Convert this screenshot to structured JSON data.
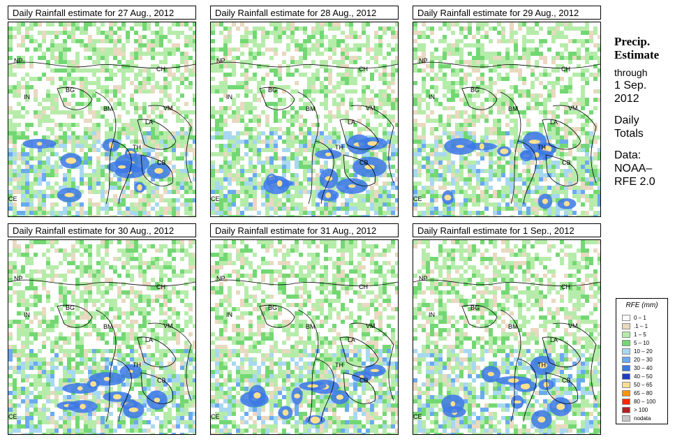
{
  "panels": [
    {
      "title": "Daily Rainfall estimate for  27 Aug., 2012",
      "day": 0
    },
    {
      "title": "Daily Rainfall estimate for  28 Aug., 2012",
      "day": 1
    },
    {
      "title": "Daily Rainfall estimate for  29 Aug., 2012",
      "day": 2
    },
    {
      "title": "Daily Rainfall estimate for  30 Aug., 2012",
      "day": 3
    },
    {
      "title": "Daily Rainfall estimate for  31 Aug., 2012",
      "day": 4
    },
    {
      "title": "Daily Rainfall estimate for  1 Sep., 2012",
      "day": 5
    }
  ],
  "country_labels": [
    "NP",
    "CH",
    "IN",
    "BG",
    "BM",
    "VM",
    "LA",
    "TH",
    "CB",
    "CE"
  ],
  "side": {
    "heading1": "Precip.",
    "heading2": "Estimate",
    "through": "through",
    "date1": "1 Sep.",
    "date2": "2012",
    "daily1": "Daily",
    "daily2": "Totals",
    "data1": "Data:",
    "data2": "NOAA–",
    "data3": "RFE 2.0"
  },
  "legend": {
    "title": "RFE (mm)",
    "items": [
      {
        "label": "0 – 1",
        "color": "#ffffff"
      },
      {
        "label": ".1 – 1",
        "color": "#e8d9c0"
      },
      {
        "label": "1 – 5",
        "color": "#b6ecaa"
      },
      {
        "label": "5 – 10",
        "color": "#73d873"
      },
      {
        "label": "10 – 20",
        "color": "#a8d8f0"
      },
      {
        "label": "20 – 30",
        "color": "#6aaaf0"
      },
      {
        "label": "30 – 40",
        "color": "#3c78e6"
      },
      {
        "label": "40 – 50",
        "color": "#1e3cc8"
      },
      {
        "label": "50 – 65",
        "color": "#ffe090"
      },
      {
        "label": "65 – 80",
        "color": "#ff9600"
      },
      {
        "label": "80 – 100",
        "color": "#ff2800"
      },
      {
        "label": "> 100",
        "color": "#b41e1e"
      },
      {
        "label": "nodata",
        "color": "#c8c8c8"
      }
    ]
  }
}
